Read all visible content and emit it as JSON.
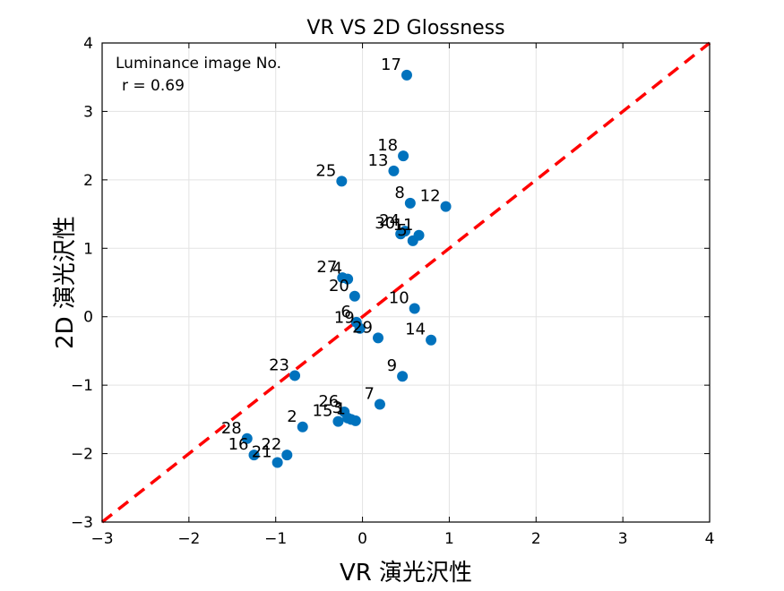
{
  "chart_data": {
    "type": "scatter",
    "title": "VR VS 2D Glossness",
    "xlabel": "VR 演光沢性",
    "ylabel": "2D 演光沢性",
    "xlim": [
      -3,
      4
    ],
    "ylim": [
      -3,
      4
    ],
    "xticks": [
      -3,
      -2,
      -1,
      0,
      1,
      2,
      3,
      4
    ],
    "yticks": [
      -3,
      -2,
      -1,
      0,
      1,
      2,
      3,
      4
    ],
    "xtick_labels": [
      "−3",
      "−2",
      "−1",
      "0",
      "1",
      "2",
      "3",
      "4"
    ],
    "ytick_labels": [
      "−3",
      "−2",
      "−1",
      "0",
      "1",
      "2",
      "3",
      "4"
    ],
    "grid": true,
    "annotation_lines": [
      "Luminance image No.",
      "r = 0.69"
    ],
    "reference_line": {
      "slope": 1,
      "intercept": 0,
      "style": "dashed",
      "color": "#ff0000"
    },
    "point_color": "#0072bd",
    "points": [
      {
        "label": "17",
        "x": 0.51,
        "y": 3.53
      },
      {
        "label": "18",
        "x": 0.47,
        "y": 2.35
      },
      {
        "label": "13",
        "x": 0.36,
        "y": 2.13
      },
      {
        "label": "25",
        "x": -0.24,
        "y": 1.98
      },
      {
        "label": "8",
        "x": 0.55,
        "y": 1.66
      },
      {
        "label": "12",
        "x": 0.96,
        "y": 1.61
      },
      {
        "label": "30",
        "x": 0.44,
        "y": 1.21
      },
      {
        "label": "24",
        "x": 0.49,
        "y": 1.25
      },
      {
        "label": "5",
        "x": 0.58,
        "y": 1.11
      },
      {
        "label": "11",
        "x": 0.65,
        "y": 1.19
      },
      {
        "label": "27",
        "x": -0.23,
        "y": 0.57
      },
      {
        "label": "4",
        "x": -0.17,
        "y": 0.55
      },
      {
        "label": "20",
        "x": -0.09,
        "y": 0.3
      },
      {
        "label": "10",
        "x": 0.6,
        "y": 0.12
      },
      {
        "label": "6",
        "x": -0.07,
        "y": -0.08
      },
      {
        "label": "19",
        "x": -0.03,
        "y": -0.17
      },
      {
        "label": "29",
        "x": 0.18,
        "y": -0.31
      },
      {
        "label": "14",
        "x": 0.79,
        "y": -0.34
      },
      {
        "label": "9",
        "x": 0.46,
        "y": -0.87
      },
      {
        "label": "23",
        "x": -0.78,
        "y": -0.86
      },
      {
        "label": "7",
        "x": 0.2,
        "y": -1.28
      },
      {
        "label": "26",
        "x": -0.21,
        "y": -1.39
      },
      {
        "label": "3",
        "x": -0.17,
        "y": -1.48
      },
      {
        "label": "15",
        "x": -0.28,
        "y": -1.53
      },
      {
        "label": "1",
        "x": -0.13,
        "y": -1.5
      },
      {
        "label": "",
        "x": -0.08,
        "y": -1.52
      },
      {
        "label": "2",
        "x": -0.69,
        "y": -1.61
      },
      {
        "label": "28",
        "x": -1.33,
        "y": -1.78
      },
      {
        "label": "16",
        "x": -1.25,
        "y": -2.02
      },
      {
        "label": "22",
        "x": -0.87,
        "y": -2.02
      },
      {
        "label": "21",
        "x": -0.98,
        "y": -2.13
      }
    ]
  }
}
